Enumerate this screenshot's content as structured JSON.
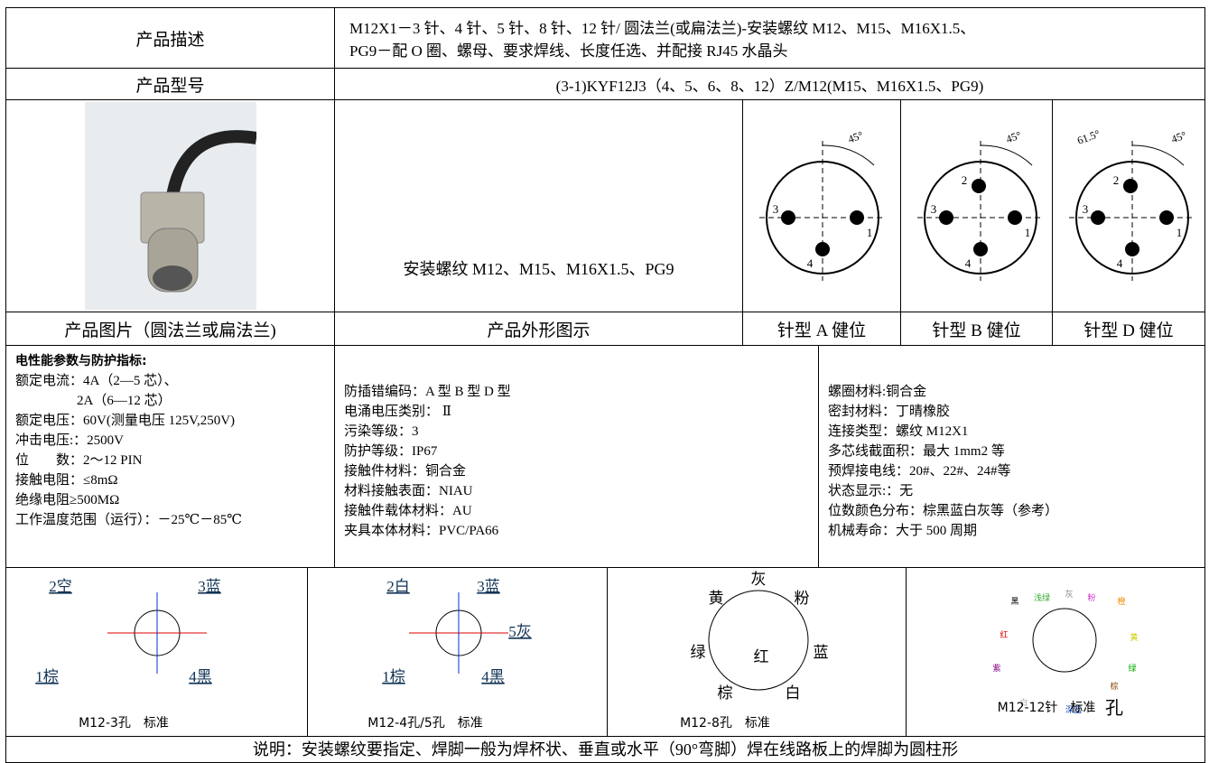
{
  "table": {
    "description_label": "产品描述",
    "description": [
      "M12X1－3 针、4 针、5 针、8 针、12 针/ 圆法兰(或扁法兰)-安装螺纹 M12、M15、M16X1.5、",
      "PG9－配 O 圈、螺母、要求焊线、长度任选、并配接 RJ45 水晶头"
    ],
    "model_label": "产品型号",
    "model": "(3-1)KYF12J3（4、5、6、8、12）Z/M12(M15、M16X1.5、PG9)",
    "outline_text": "安装螺纹 M12、M15、M16X1.5、PG9",
    "pin_diagrams": [
      {
        "angles": [
          "45°"
        ],
        "pins": [
          "1",
          "3",
          "4"
        ]
      },
      {
        "angles": [
          "45°"
        ],
        "pins": [
          "1",
          "2",
          "3",
          "4"
        ]
      },
      {
        "angles": [
          "61.5°",
          "45°"
        ],
        "pins": [
          "1",
          "2",
          "3",
          "4"
        ]
      }
    ],
    "captions": [
      "产品图片（圆法兰或扁法兰)",
      "产品外形图示",
      "针型 A 健位",
      "针型 B 健位",
      "针型 D 健位"
    ],
    "params": [
      {
        "title": "电性能参数与防护指标:",
        "lines": [
          "额定电流：4A（2—5 芯）、",
          "2A（6—12 芯）",
          "额定电压：60V(测量电压 125V,250V)",
          "冲击电压:：2500V",
          "位　　数：2～12 PIN",
          "接触电阻：≤8mΩ",
          "绝缘电阻≥500MΩ",
          "工作温度范围（运行）：－25℃－85℃"
        ]
      },
      {
        "lines": [
          "防插错编码：A 型 B 型 D 型",
          "电涌电压类别： Ⅱ",
          "污染等级：3",
          "防护等级：IP67",
          "接触件材料：铜合金",
          "材料接触表面：NIAU",
          "接触件载体材料：AU",
          "夹具本体材料：PVC/PA66"
        ]
      },
      {
        "lines": [
          "螺圈材料:铜合金",
          "密封材料：丁晴橡胶",
          "连接类型：螺纹 M12X1",
          "多芯线截面积：最大 1mm2 等",
          "预焊接电线：20#、22#、24#等",
          "状态显示:：无",
          "位数颜色分布：棕黑蓝白灰等（参考）",
          "机械寿命：大于 500 周期"
        ]
      }
    ],
    "wiring": [
      {
        "labels": [
          "2空",
          "3蓝",
          "1棕",
          "4黑"
        ],
        "caption": "M12-3孔　标准"
      },
      {
        "labels": [
          "2白",
          "3蓝",
          "5灰",
          "1棕",
          "4黑"
        ],
        "caption": "M12-4孔/5孔　标准"
      },
      {
        "labels": [
          "灰",
          "黄",
          "粉",
          "绿",
          "红",
          "蓝",
          "棕",
          "白"
        ],
        "caption": "M12-8孔　标准"
      },
      {
        "labels": [
          "黑",
          "浅绿",
          "灰",
          "粉",
          "橙",
          "红",
          "黄",
          "紫",
          "绿",
          "棕",
          "白",
          "深蓝"
        ],
        "caption": "M12-12针　标准",
        "suffix": "孔"
      }
    ],
    "note": "说明：安装螺纹要指定、焊脚一般为焊杯状、垂直或水平（90°弯脚）焊在线路板上的焊脚为圆柱形"
  }
}
